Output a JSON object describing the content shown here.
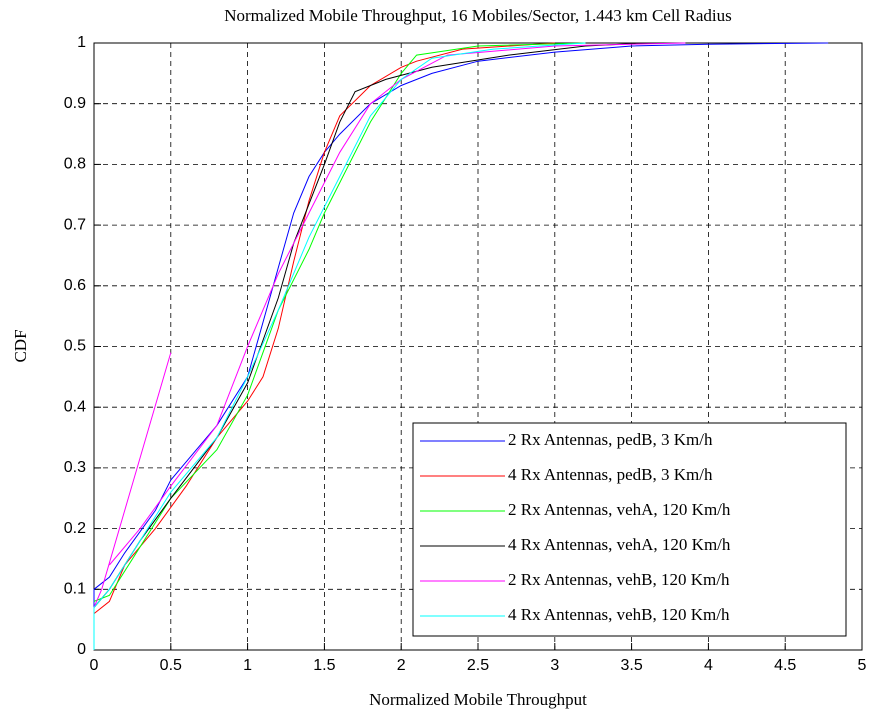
{
  "chart_data": {
    "type": "line",
    "title": "Normalized Mobile Throughput, 16 Mobiles/Sector, 1.443 km Cell Radius",
    "xlabel": "Normalized Mobile Throughput",
    "ylabel": "CDF",
    "xlim": [
      0,
      5
    ],
    "xticks": [
      0,
      0.5,
      1,
      1.5,
      2,
      2.5,
      3,
      3.5,
      4,
      4.5,
      5
    ],
    "ylim": [
      0,
      1
    ],
    "yticks": [
      0,
      0.1,
      0.2,
      0.3,
      0.4,
      0.5,
      0.6,
      0.7,
      0.8,
      0.9,
      1
    ],
    "grid": true,
    "legend": "lower right",
    "series": [
      {
        "name": "2 Rx Antennas, pedB, 3 Km/h",
        "color": "#0000ff",
        "x": [
          0,
          0,
          0.1,
          0.2,
          0.4,
          0.5,
          0.6,
          0.8,
          1.0,
          1.1,
          1.2,
          1.3,
          1.4,
          1.5,
          1.6,
          1.8,
          2.0,
          2.2,
          2.5,
          3.0,
          3.5,
          4.0,
          4.78
        ],
        "values": [
          0,
          0.1,
          0.12,
          0.16,
          0.23,
          0.28,
          0.31,
          0.37,
          0.45,
          0.54,
          0.63,
          0.72,
          0.78,
          0.82,
          0.85,
          0.9,
          0.93,
          0.95,
          0.97,
          0.985,
          0.995,
          0.998,
          1
        ]
      },
      {
        "name": "4 Rx Antennas, pedB, 3 Km/h",
        "color": "#ff0000",
        "x": [
          0,
          0.1,
          0.2,
          0.4,
          0.6,
          0.8,
          1.0,
          1.1,
          1.2,
          1.3,
          1.4,
          1.5,
          1.6,
          1.8,
          2.0,
          2.1,
          2.4,
          3.0
        ],
        "values": [
          0.06,
          0.08,
          0.14,
          0.2,
          0.27,
          0.35,
          0.41,
          0.45,
          0.53,
          0.64,
          0.74,
          0.82,
          0.88,
          0.93,
          0.96,
          0.97,
          0.99,
          1
        ]
      },
      {
        "name": "2 Rx Antennas, vehA, 120 Km/h",
        "color": "#00ff00",
        "x": [
          0,
          0.1,
          0.3,
          0.5,
          0.8,
          1.0,
          1.2,
          1.4,
          1.5,
          1.6,
          1.8,
          2.0,
          2.1,
          2.5,
          3.2
        ],
        "values": [
          0.08,
          0.09,
          0.17,
          0.25,
          0.33,
          0.42,
          0.56,
          0.66,
          0.72,
          0.77,
          0.87,
          0.95,
          0.98,
          0.995,
          1
        ]
      },
      {
        "name": "4 Rx Antennas, vehA, 120 Km/h",
        "color": "#000000",
        "x": [
          0,
          0.1,
          0.3,
          0.5,
          0.8,
          1.0,
          1.2,
          1.3,
          1.5,
          1.6,
          1.7,
          1.9,
          2.2,
          2.7,
          3.2,
          3.6
        ],
        "values": [
          0.07,
          0.1,
          0.18,
          0.25,
          0.35,
          0.44,
          0.58,
          0.67,
          0.8,
          0.87,
          0.92,
          0.94,
          0.96,
          0.98,
          0.995,
          1
        ]
      },
      {
        "name": "2 Rx Antennas, vehB, 120 Km/h",
        "color": "#ff00ff",
        "x": [
          0,
          0.05,
          0.5,
          null,
          0.1,
          0.3,
          0.5,
          0.8,
          1.0,
          1.2,
          1.4,
          1.6,
          1.8,
          2.0,
          2.3,
          3.0,
          3.85
        ],
        "values": [
          0.07,
          0.1,
          0.49,
          null,
          0.14,
          0.2,
          0.27,
          0.37,
          0.5,
          0.62,
          0.72,
          0.82,
          0.9,
          0.94,
          0.98,
          0.995,
          1
        ]
      },
      {
        "name": "4 Rx Antennas, vehB, 120 Km/h",
        "color": "#00ffff",
        "x": [
          0,
          0,
          0.1,
          0.3,
          0.5,
          0.8,
          1.0,
          1.2,
          1.4,
          1.6,
          1.8,
          2.0,
          2.2,
          2.6,
          3.2
        ],
        "values": [
          0,
          0.07,
          0.1,
          0.18,
          0.26,
          0.35,
          0.45,
          0.56,
          0.68,
          0.78,
          0.88,
          0.94,
          0.975,
          0.99,
          1
        ]
      }
    ]
  }
}
